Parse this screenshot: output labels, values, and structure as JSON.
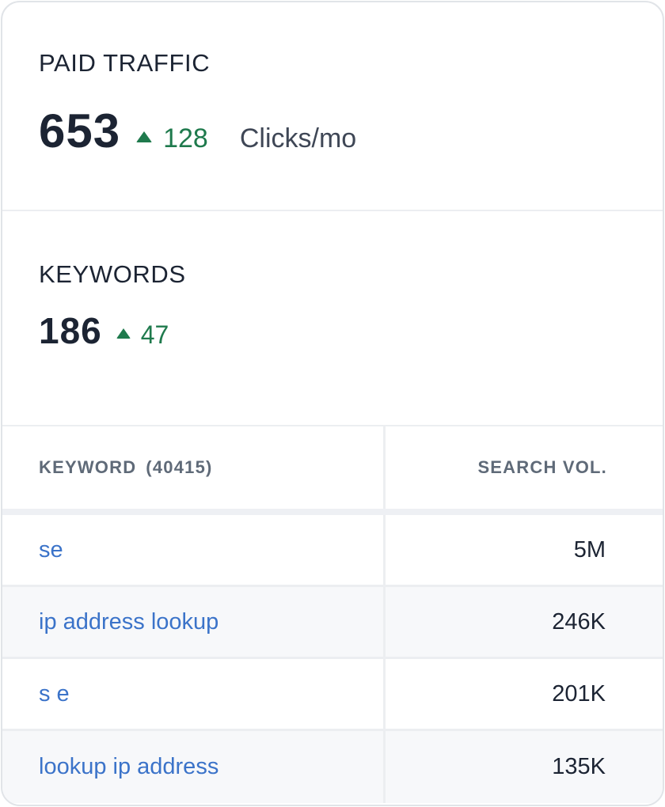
{
  "paid_traffic": {
    "title": "PAID TRAFFIC",
    "value": "653",
    "delta": "128",
    "unit": "Clicks/mo",
    "delta_color": "#1f7a4d"
  },
  "keywords": {
    "title": "KEYWORDS",
    "value": "186",
    "delta": "47"
  },
  "table": {
    "col_keyword": "KEYWORD",
    "col_keyword_count": "(40415)",
    "col_volume": "SEARCH VOL.",
    "rows": [
      {
        "keyword": "se",
        "volume": "5M"
      },
      {
        "keyword": "ip address lookup",
        "volume": "246K"
      },
      {
        "keyword": "s e",
        "volume": "201K"
      },
      {
        "keyword": "lookup ip address",
        "volume": "135K"
      }
    ],
    "link_color": "#3b73c9"
  },
  "icons": {
    "delta_up": "triangle-up-icon"
  }
}
